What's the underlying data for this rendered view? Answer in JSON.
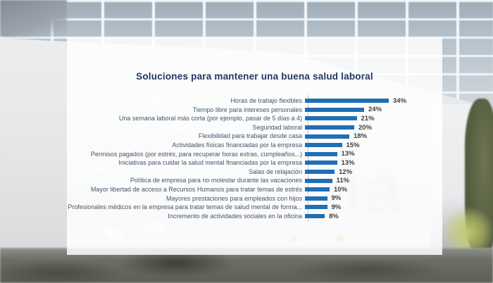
{
  "chart_data": {
    "type": "bar",
    "orientation": "horizontal",
    "title": "Soluciones para mantener una buena salud laboral",
    "categories": [
      "Horas de trabajo flexibles",
      "Tiempo libre para intereses personales",
      "Una semana laboral más corta (por ejemplo, pasar de 5 días a 4)",
      "Seguridad laboral",
      "Flexibilidad para trabajar desde casa",
      "Actividades físicas financiadas por la empresa",
      "Permisos pagados (por estrés, para recuperar horas extras, cumpleaños...)",
      "Iniciativas para cuidar la salud mental financiadas por la empresa",
      "Salas de relajación",
      "Política de empresa para no molestar durante las vacaciones",
      "Mayor libertad de acceso a Recursos Humanos para tratar temas de estrés",
      "Mayores prestaciones para empleados con hijos",
      "Profesionales médicos en la empresa para tratar temas de salud mental de forma...",
      "Incremento de actividades sociales en la oficina"
    ],
    "values": [
      34,
      24,
      21,
      20,
      18,
      15,
      13,
      13,
      12,
      11,
      10,
      9,
      9,
      8
    ],
    "unit": "%",
    "xlim": [
      0,
      40
    ],
    "grid": false,
    "legend": "none",
    "colors": {
      "bar": "#1F6FB5",
      "title": "#1F3864",
      "category_label": "#44546A",
      "value_label": "#3F3F3F",
      "axis_line": "#C9C9C9"
    }
  },
  "background": {
    "ghost_letters": "na"
  }
}
